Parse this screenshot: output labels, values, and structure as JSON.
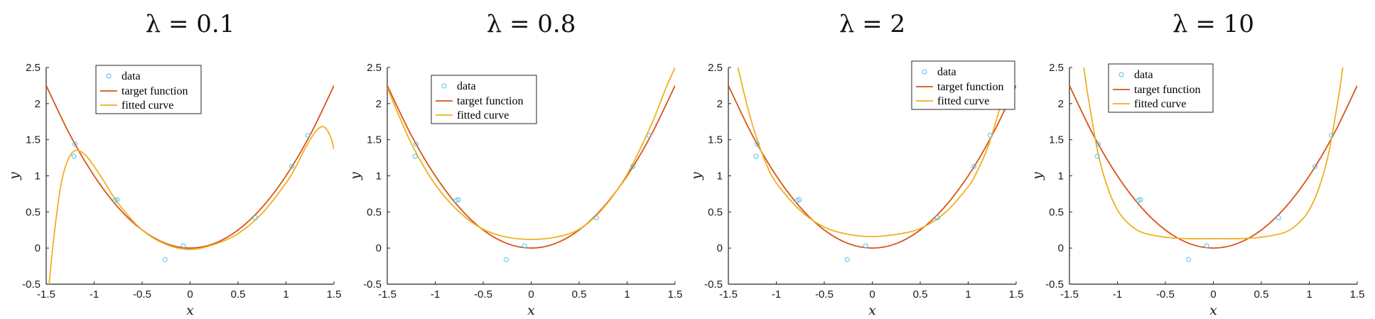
{
  "chart_data": [
    {
      "type": "line",
      "title": "λ = 0.1",
      "xlabel": "x",
      "ylabel": "y",
      "xlim": [
        -1.5,
        1.5
      ],
      "ylim": [
        -0.5,
        2.5
      ],
      "xticks": [
        "-1.5",
        "-1",
        "-0.5",
        "0",
        "0.5",
        "1",
        "1.5"
      ],
      "yticks": [
        "-0.5",
        "0",
        "0.5",
        "1",
        "1.5",
        "2",
        "2.5"
      ],
      "legend_position": "top-left",
      "legend": [
        "data",
        "target function",
        "fitted curve"
      ],
      "data_points": {
        "x": [
          -1.21,
          -1.2,
          -0.78,
          -0.76,
          -0.26,
          -0.07,
          0.68,
          1.06,
          1.23
        ],
        "y": [
          1.27,
          1.44,
          0.66,
          0.67,
          -0.16,
          0.03,
          0.42,
          1.13,
          1.56
        ]
      },
      "target_function": {
        "x": [
          -1.5,
          -1.25,
          -1,
          -0.75,
          -0.5,
          -0.25,
          0,
          0.25,
          0.5,
          0.75,
          1,
          1.25,
          1.5
        ],
        "y": [
          2.25,
          1.5625,
          1,
          0.5625,
          0.25,
          0.0625,
          0,
          0.0625,
          0.25,
          0.5625,
          1,
          1.5625,
          2.25
        ]
      },
      "fitted_curve": {
        "x": [
          -1.47,
          -1.42,
          -1.35,
          -1.28,
          -1.2,
          -1.1,
          -1,
          -0.9,
          -0.75,
          -0.5,
          -0.25,
          0,
          0.25,
          0.5,
          0.75,
          1,
          1.1,
          1.2,
          1.3,
          1.37,
          1.42,
          1.47,
          1.5
        ],
        "y": [
          -0.5,
          0.15,
          0.85,
          1.2,
          1.35,
          1.3,
          1.13,
          0.93,
          0.62,
          0.25,
          0.05,
          -0.02,
          0.05,
          0.2,
          0.48,
          0.9,
          1.12,
          1.38,
          1.6,
          1.68,
          1.65,
          1.52,
          1.37
        ]
      },
      "colors": {
        "data": "#4DBEEE",
        "target_function": "#D95319",
        "fitted_curve": "#EDB120"
      }
    },
    {
      "type": "line",
      "title": "λ = 0.8",
      "xlabel": "x",
      "ylabel": "y",
      "xlim": [
        -1.5,
        1.5
      ],
      "ylim": [
        -0.5,
        2.5
      ],
      "xticks": [
        "-1.5",
        "-1",
        "-0.5",
        "0",
        "0.5",
        "1",
        "1.5"
      ],
      "yticks": [
        "-0.5",
        "0",
        "0.5",
        "1",
        "1.5",
        "2",
        "2.5"
      ],
      "legend_position": "top-left",
      "legend": [
        "data",
        "target function",
        "fitted curve"
      ],
      "data_points": {
        "x": [
          -1.21,
          -1.2,
          -0.78,
          -0.76,
          -0.26,
          -0.07,
          0.68,
          1.06,
          1.23
        ],
        "y": [
          1.27,
          1.44,
          0.66,
          0.67,
          -0.16,
          0.03,
          0.42,
          1.13,
          1.56
        ]
      },
      "target_function": {
        "x": [
          -1.5,
          -1.25,
          -1,
          -0.75,
          -0.5,
          -0.25,
          0,
          0.25,
          0.5,
          0.75,
          1,
          1.25,
          1.5
        ],
        "y": [
          2.25,
          1.5625,
          1,
          0.5625,
          0.25,
          0.0625,
          0,
          0.0625,
          0.25,
          0.5625,
          1,
          1.5625,
          2.25
        ]
      },
      "fitted_curve": {
        "x": [
          -1.5,
          -1.25,
          -1,
          -0.75,
          -0.5,
          -0.25,
          0,
          0.25,
          0.5,
          0.75,
          1,
          1.25,
          1.4,
          1.5
        ],
        "y": [
          2.22,
          1.45,
          0.88,
          0.5,
          0.26,
          0.15,
          0.12,
          0.15,
          0.26,
          0.55,
          1.02,
          1.7,
          2.2,
          2.5
        ]
      },
      "colors": {
        "data": "#4DBEEE",
        "target_function": "#D95319",
        "fitted_curve": "#EDB120"
      }
    },
    {
      "type": "line",
      "title": "λ = 2",
      "xlabel": "x",
      "ylabel": "y",
      "xlim": [
        -1.5,
        1.5
      ],
      "ylim": [
        -0.5,
        2.5
      ],
      "xticks": [
        "-1.5",
        "-1",
        "-0.5",
        "0",
        "0.5",
        "1",
        "1.5"
      ],
      "yticks": [
        "-0.5",
        "0",
        "0.5",
        "1",
        "1.5",
        "2",
        "2.5"
      ],
      "legend_position": "top-right",
      "legend": [
        "data",
        "target function",
        "fitted curve"
      ],
      "data_points": {
        "x": [
          -1.21,
          -1.2,
          -0.78,
          -0.76,
          -0.26,
          -0.07,
          0.68,
          1.06,
          1.23
        ],
        "y": [
          1.27,
          1.44,
          0.66,
          0.67,
          -0.16,
          0.03,
          0.42,
          1.13,
          1.56
        ]
      },
      "target_function": {
        "x": [
          -1.5,
          -1.25,
          -1,
          -0.75,
          -0.5,
          -0.25,
          0,
          0.25,
          0.5,
          0.75,
          1,
          1.25,
          1.5
        ],
        "y": [
          2.25,
          1.5625,
          1,
          0.5625,
          0.25,
          0.0625,
          0,
          0.0625,
          0.25,
          0.5625,
          1,
          1.5625,
          2.25
        ]
      },
      "fitted_curve": {
        "x": [
          -1.4,
          -1.3,
          -1.2,
          -1.1,
          -1,
          -0.75,
          -0.5,
          -0.25,
          0,
          0.25,
          0.5,
          0.75,
          1,
          1.1,
          1.2,
          1.3,
          1.4,
          1.45
        ],
        "y": [
          2.5,
          1.95,
          1.5,
          1.15,
          0.9,
          0.52,
          0.29,
          0.19,
          0.16,
          0.19,
          0.27,
          0.48,
          0.85,
          1.08,
          1.38,
          1.8,
          2.3,
          2.5
        ]
      },
      "colors": {
        "data": "#4DBEEE",
        "target_function": "#D95319",
        "fitted_curve": "#EDB120"
      }
    },
    {
      "type": "line",
      "title": "λ = 10",
      "xlabel": "x",
      "ylabel": "y",
      "xlim": [
        -1.5,
        1.5
      ],
      "ylim": [
        -0.5,
        2.5
      ],
      "xticks": [
        "-1.5",
        "-1",
        "-0.5",
        "0",
        "0.5",
        "1",
        "1.5"
      ],
      "yticks": [
        "-0.5",
        "0",
        "0.5",
        "1",
        "1.5",
        "2",
        "2.5"
      ],
      "legend_position": "top-left",
      "legend": [
        "data",
        "target function",
        "fitted curve"
      ],
      "data_points": {
        "x": [
          -1.21,
          -1.2,
          -0.78,
          -0.76,
          -0.26,
          -0.07,
          0.68,
          1.06,
          1.23
        ],
        "y": [
          1.27,
          1.44,
          0.66,
          0.67,
          -0.16,
          0.03,
          0.42,
          1.13,
          1.56
        ]
      },
      "target_function": {
        "x": [
          -1.5,
          -1.25,
          -1,
          -0.75,
          -0.5,
          -0.25,
          0,
          0.25,
          0.5,
          0.75,
          1,
          1.25,
          1.5
        ],
        "y": [
          2.25,
          1.5625,
          1,
          0.5625,
          0.25,
          0.0625,
          0,
          0.0625,
          0.25,
          0.5625,
          1,
          1.5625,
          2.25
        ]
      },
      "fitted_curve": {
        "x": [
          -1.35,
          -1.3,
          -1.2,
          -1.1,
          -1,
          -0.9,
          -0.75,
          -0.5,
          -0.25,
          0,
          0.25,
          0.5,
          0.75,
          0.9,
          1,
          1.1,
          1.2,
          1.3,
          1.35
        ],
        "y": [
          2.5,
          2.05,
          1.3,
          0.83,
          0.53,
          0.36,
          0.22,
          0.15,
          0.13,
          0.13,
          0.13,
          0.15,
          0.22,
          0.36,
          0.53,
          0.83,
          1.3,
          2.05,
          2.5
        ]
      },
      "colors": {
        "data": "#4DBEEE",
        "target_function": "#D95319",
        "fitted_curve": "#EDB120"
      }
    }
  ]
}
